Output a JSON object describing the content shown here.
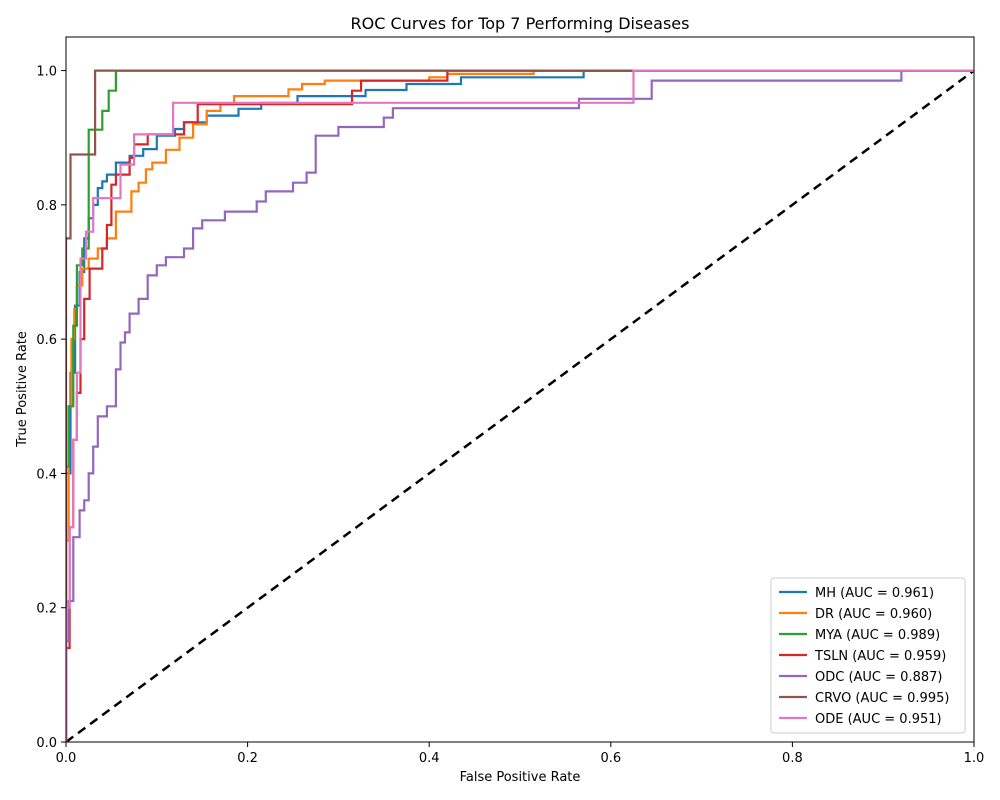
{
  "chart_data": {
    "type": "line",
    "title": "ROC Curves for Top 7 Performing Diseases",
    "xlabel": "False Positive Rate",
    "ylabel": "True Positive Rate",
    "xlim": [
      0.0,
      1.0
    ],
    "ylim": [
      0.0,
      1.05
    ],
    "xticks": [
      "0.0",
      "0.2",
      "0.4",
      "0.6",
      "0.8",
      "1.0"
    ],
    "yticks": [
      "0.0",
      "0.2",
      "0.4",
      "0.6",
      "0.8",
      "1.0"
    ],
    "legend_position": "lower-right",
    "grid": false,
    "diagonal": {
      "x": [
        0,
        1
      ],
      "y": [
        0,
        1
      ],
      "color": "#000000",
      "style": "dashed"
    },
    "series": [
      {
        "name": "MH (AUC = 0.961)",
        "color": "#1f77b4",
        "x": [
          0.0,
          0.0,
          0.005,
          0.005,
          0.01,
          0.01,
          0.015,
          0.015,
          0.02,
          0.02,
          0.025,
          0.025,
          0.03,
          0.03,
          0.035,
          0.035,
          0.04,
          0.04,
          0.045,
          0.045,
          0.055,
          0.055,
          0.07,
          0.07,
          0.085,
          0.085,
          0.1,
          0.1,
          0.12,
          0.12,
          0.13,
          0.13,
          0.155,
          0.155,
          0.19,
          0.19,
          0.215,
          0.215,
          0.255,
          0.255,
          0.33,
          0.33,
          0.375,
          0.375,
          0.435,
          0.435,
          0.57,
          0.57,
          1.0
        ],
        "y": [
          0.0,
          0.4,
          0.4,
          0.55,
          0.55,
          0.65,
          0.65,
          0.7,
          0.7,
          0.75,
          0.75,
          0.78,
          0.78,
          0.8,
          0.8,
          0.825,
          0.825,
          0.835,
          0.835,
          0.845,
          0.845,
          0.863,
          0.863,
          0.873,
          0.873,
          0.883,
          0.883,
          0.903,
          0.903,
          0.913,
          0.913,
          0.923,
          0.923,
          0.933,
          0.933,
          0.943,
          0.943,
          0.952,
          0.952,
          0.962,
          0.962,
          0.971,
          0.971,
          0.98,
          0.98,
          0.99,
          0.99,
          1.0,
          1.0
        ]
      },
      {
        "name": "DR (AUC = 0.960)",
        "color": "#ff7f0e",
        "x": [
          0.0,
          0.0,
          0.003,
          0.003,
          0.006,
          0.006,
          0.009,
          0.009,
          0.012,
          0.012,
          0.018,
          0.018,
          0.025,
          0.025,
          0.035,
          0.035,
          0.045,
          0.045,
          0.055,
          0.055,
          0.072,
          0.072,
          0.08,
          0.08,
          0.088,
          0.088,
          0.095,
          0.095,
          0.11,
          0.11,
          0.125,
          0.125,
          0.14,
          0.14,
          0.155,
          0.155,
          0.17,
          0.17,
          0.185,
          0.185,
          0.245,
          0.245,
          0.26,
          0.26,
          0.285,
          0.285,
          0.4,
          0.4,
          0.42,
          0.42,
          0.515,
          0.515,
          1.0
        ],
        "y": [
          0.0,
          0.3,
          0.3,
          0.5,
          0.5,
          0.6,
          0.6,
          0.645,
          0.645,
          0.68,
          0.68,
          0.705,
          0.705,
          0.72,
          0.72,
          0.735,
          0.735,
          0.75,
          0.75,
          0.79,
          0.79,
          0.82,
          0.82,
          0.833,
          0.833,
          0.853,
          0.853,
          0.863,
          0.863,
          0.882,
          0.882,
          0.9,
          0.9,
          0.92,
          0.92,
          0.94,
          0.94,
          0.95,
          0.95,
          0.962,
          0.962,
          0.972,
          0.972,
          0.98,
          0.98,
          0.985,
          0.985,
          0.99,
          0.99,
          0.995,
          0.995,
          1.0,
          1.0
        ]
      },
      {
        "name": "MYA (AUC = 0.989)",
        "color": "#2ca02c",
        "x": [
          0.0,
          0.0,
          0.003,
          0.003,
          0.008,
          0.008,
          0.012,
          0.012,
          0.018,
          0.018,
          0.025,
          0.025,
          0.04,
          0.04,
          0.047,
          0.047,
          0.055,
          0.055,
          1.0
        ],
        "y": [
          0.0,
          0.41,
          0.41,
          0.5,
          0.5,
          0.62,
          0.62,
          0.71,
          0.71,
          0.735,
          0.735,
          0.912,
          0.912,
          0.94,
          0.94,
          0.97,
          0.97,
          1.0,
          1.0
        ]
      },
      {
        "name": "TSLN (AUC = 0.959)",
        "color": "#d62728",
        "x": [
          0.0,
          0.0,
          0.004,
          0.004,
          0.008,
          0.008,
          0.012,
          0.012,
          0.016,
          0.016,
          0.02,
          0.02,
          0.026,
          0.026,
          0.04,
          0.04,
          0.045,
          0.045,
          0.05,
          0.05,
          0.055,
          0.055,
          0.07,
          0.07,
          0.075,
          0.075,
          0.09,
          0.09,
          0.13,
          0.13,
          0.145,
          0.145,
          0.315,
          0.315,
          0.325,
          0.325,
          0.42,
          0.42,
          1.0
        ],
        "y": [
          0.0,
          0.14,
          0.14,
          0.32,
          0.32,
          0.45,
          0.45,
          0.52,
          0.52,
          0.6,
          0.6,
          0.66,
          0.66,
          0.705,
          0.705,
          0.735,
          0.735,
          0.77,
          0.77,
          0.83,
          0.83,
          0.845,
          0.845,
          0.87,
          0.87,
          0.89,
          0.89,
          0.905,
          0.905,
          0.923,
          0.923,
          0.95,
          0.95,
          0.97,
          0.97,
          0.985,
          0.985,
          1.0,
          1.0
        ]
      },
      {
        "name": "ODC (AUC = 0.887)",
        "color": "#9467bd",
        "x": [
          0.0,
          0.0,
          0.003,
          0.003,
          0.008,
          0.008,
          0.015,
          0.015,
          0.02,
          0.02,
          0.025,
          0.025,
          0.03,
          0.03,
          0.035,
          0.035,
          0.045,
          0.045,
          0.055,
          0.055,
          0.06,
          0.06,
          0.065,
          0.065,
          0.07,
          0.07,
          0.08,
          0.08,
          0.09,
          0.09,
          0.1,
          0.1,
          0.11,
          0.11,
          0.13,
          0.13,
          0.14,
          0.14,
          0.15,
          0.15,
          0.175,
          0.175,
          0.21,
          0.21,
          0.22,
          0.22,
          0.25,
          0.25,
          0.265,
          0.265,
          0.275,
          0.275,
          0.3,
          0.3,
          0.35,
          0.35,
          0.36,
          0.36,
          0.565,
          0.565,
          0.645,
          0.645,
          0.92,
          0.92,
          1.0
        ],
        "y": [
          0.0,
          0.15,
          0.15,
          0.21,
          0.21,
          0.305,
          0.305,
          0.345,
          0.345,
          0.36,
          0.36,
          0.4,
          0.4,
          0.44,
          0.44,
          0.485,
          0.485,
          0.5,
          0.5,
          0.555,
          0.555,
          0.595,
          0.595,
          0.61,
          0.61,
          0.638,
          0.638,
          0.66,
          0.66,
          0.695,
          0.695,
          0.71,
          0.71,
          0.722,
          0.722,
          0.735,
          0.735,
          0.765,
          0.765,
          0.777,
          0.777,
          0.79,
          0.79,
          0.805,
          0.805,
          0.82,
          0.82,
          0.833,
          0.833,
          0.848,
          0.848,
          0.903,
          0.903,
          0.916,
          0.916,
          0.93,
          0.93,
          0.944,
          0.944,
          0.958,
          0.958,
          0.985,
          0.985,
          1.0,
          1.0
        ]
      },
      {
        "name": "CRVO (AUC = 0.995)",
        "color": "#8c564b",
        "x": [
          0.0,
          0.0,
          0.005,
          0.005,
          0.032,
          0.032,
          1.0
        ],
        "y": [
          0.0,
          0.75,
          0.75,
          0.875,
          0.875,
          1.0,
          1.0
        ]
      },
      {
        "name": "ODE (AUC = 0.951)",
        "color": "#e377c2",
        "x": [
          0.0,
          0.0,
          0.004,
          0.004,
          0.008,
          0.008,
          0.012,
          0.012,
          0.016,
          0.016,
          0.022,
          0.022,
          0.03,
          0.03,
          0.06,
          0.06,
          0.075,
          0.075,
          0.118,
          0.118,
          0.625,
          0.625,
          1.0
        ],
        "y": [
          0.0,
          0.2,
          0.2,
          0.32,
          0.32,
          0.45,
          0.45,
          0.55,
          0.55,
          0.72,
          0.72,
          0.76,
          0.76,
          0.81,
          0.81,
          0.86,
          0.86,
          0.905,
          0.905,
          0.952,
          0.952,
          1.0,
          1.0
        ]
      }
    ]
  }
}
